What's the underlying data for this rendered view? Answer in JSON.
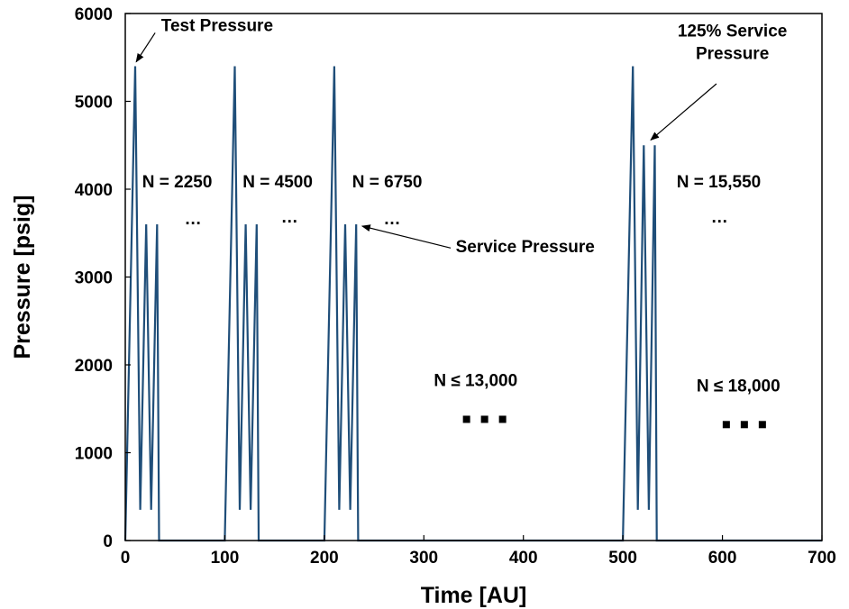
{
  "chart_data": {
    "type": "line",
    "title": "",
    "xlabel": "Time [AU]",
    "ylabel": "Pressure [psig]",
    "xlim": [
      0,
      700
    ],
    "ylim": [
      0,
      6000
    ],
    "xticks": [
      0,
      100,
      200,
      300,
      400,
      500,
      600,
      700
    ],
    "yticks": [
      0,
      1000,
      2000,
      3000,
      4000,
      5000,
      6000
    ],
    "grid": false,
    "legend": "none",
    "series_color": "#1f4e79",
    "series": [
      {
        "x": [
          0,
          10,
          15,
          21,
          26,
          32,
          34,
          100,
          110,
          115,
          121,
          126,
          132,
          134,
          200,
          210,
          215,
          221,
          226,
          232,
          234,
          500,
          510,
          515,
          521,
          526,
          532,
          534,
          700
        ],
        "y": [
          0,
          5400,
          350,
          3600,
          350,
          3600,
          0,
          0,
          5400,
          350,
          3600,
          350,
          3600,
          0,
          0,
          5400,
          350,
          3600,
          350,
          3600,
          0,
          0,
          5400,
          350,
          4500,
          350,
          4500,
          0,
          0
        ]
      }
    ],
    "annotations": [
      {
        "id": "test-pressure",
        "lines": [
          "Test Pressure"
        ],
        "arrow_to": [
          11,
          5450
        ]
      },
      {
        "id": "service-pressure",
        "lines": [
          "Service Pressure"
        ],
        "arrow_to": [
          238,
          3580
        ]
      },
      {
        "id": "125-service-pressure",
        "lines": [
          "125% Service",
          "Pressure"
        ],
        "arrow_to": [
          528,
          4560
        ]
      },
      {
        "id": "n-2250",
        "lines": [
          "N = 2250"
        ]
      },
      {
        "id": "n-4500",
        "lines": [
          "N = 4500"
        ]
      },
      {
        "id": "n-6750",
        "lines": [
          "N = 6750"
        ]
      },
      {
        "id": "n-15550",
        "lines": [
          "N = 15,550"
        ]
      },
      {
        "id": "n-le-13000",
        "lines": [
          "N ≤ 13,000"
        ]
      },
      {
        "id": "n-le-18000",
        "lines": [
          "N ≤ 18,000"
        ]
      },
      {
        "id": "ellipsis-1",
        "lines": [
          "…"
        ]
      },
      {
        "id": "ellipsis-2",
        "lines": [
          "…"
        ]
      },
      {
        "id": "ellipsis-3",
        "lines": [
          "…"
        ]
      },
      {
        "id": "ellipsis-4",
        "lines": [
          "…"
        ]
      },
      {
        "id": "dots-1",
        "lines": [
          "▪ ▪ ▪"
        ]
      },
      {
        "id": "dots-2",
        "lines": [
          "▪ ▪ ▪"
        ]
      }
    ]
  }
}
